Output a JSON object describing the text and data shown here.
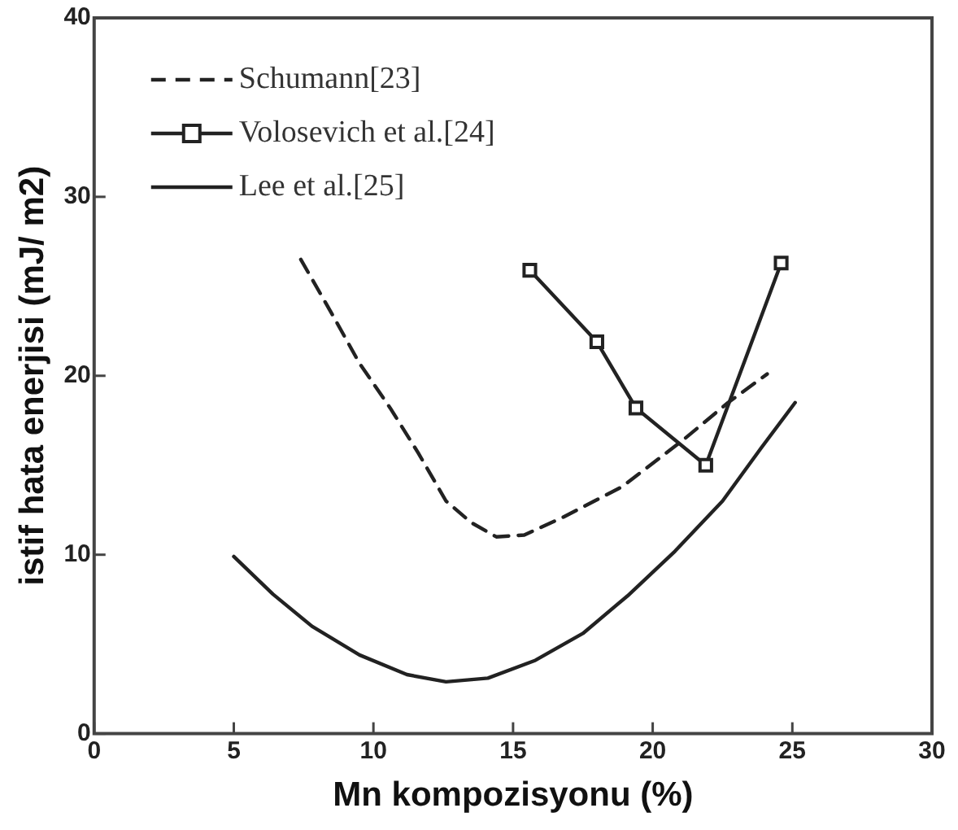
{
  "chart_data": {
    "type": "line",
    "xlabel": "Mn kompozisyonu (%)",
    "ylabel": "istif hata enerjisi (mJ/ m2)",
    "xlim": [
      0,
      30
    ],
    "xticks": [
      0,
      5,
      10,
      15,
      20,
      25,
      30
    ],
    "ylim": [
      0,
      40
    ],
    "yticks": [
      0,
      10,
      20,
      30,
      40
    ],
    "grid": false,
    "legend": "top left",
    "series": [
      {
        "name": "Schumann[23]",
        "color": "#222222",
        "line_style": "dashed",
        "marker": "none",
        "x": [
          7.4,
          8.5,
          9.5,
          10.6,
          11.6,
          12.6,
          13.5,
          14.4,
          15.4,
          16.8,
          18.9,
          21.0,
          22.7,
          24.1
        ],
        "values": [
          26.5,
          23.5,
          20.7,
          18.2,
          15.7,
          13.0,
          11.8,
          11.0,
          11.1,
          12.1,
          13.8,
          16.3,
          18.5,
          20.1
        ]
      },
      {
        "name": "Volosevich et al.[24]",
        "color": "#222222",
        "line_style": "solid",
        "marker": "square",
        "x": [
          15.6,
          18.0,
          19.4,
          21.9,
          24.6
        ],
        "values": [
          25.9,
          21.9,
          18.2,
          15.0,
          26.3
        ]
      },
      {
        "name": "Lee et al.[25]",
        "color": "#222222",
        "line_style": "solid",
        "marker": "none",
        "x": [
          5.0,
          6.4,
          7.8,
          9.5,
          11.2,
          12.6,
          14.1,
          15.8,
          17.5,
          19.1,
          20.8,
          22.5,
          23.9,
          25.1
        ],
        "values": [
          9.9,
          7.8,
          6.0,
          4.4,
          3.3,
          2.9,
          3.1,
          4.1,
          5.6,
          7.7,
          10.2,
          13.0,
          16.0,
          18.5
        ]
      }
    ]
  }
}
